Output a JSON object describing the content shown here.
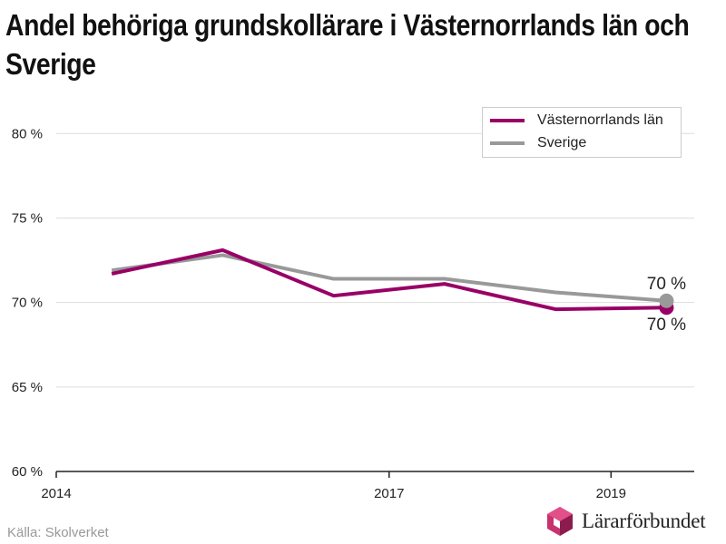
{
  "title": "Andel behöriga grundskollärare i Västernorrlands län och Sverige",
  "source": "Källa: Skolverket",
  "logo_text": "Lärarförbundet",
  "colors": {
    "series1": "#990066",
    "series2": "#999999",
    "grid": "#dddddd",
    "axis": "#222222"
  },
  "chart_data": {
    "type": "line",
    "xlim": [
      2014,
      2019.75
    ],
    "ylim": [
      60,
      82
    ],
    "yticks": [
      60,
      65,
      70,
      75,
      80
    ],
    "ytick_labels": [
      "60 %",
      "65 %",
      "70 %",
      "75 %",
      "80 %"
    ],
    "xticks": [
      2014,
      2017,
      2019
    ],
    "xtick_labels": [
      "2014",
      "2017",
      "2019"
    ],
    "grid": true,
    "legend_position": "top-right",
    "series": [
      {
        "name": "Västernorrlands län",
        "color": "#990066",
        "x": [
          2014.5,
          2015.5,
          2016.5,
          2017.5,
          2018.5,
          2019.5
        ],
        "y": [
          71.7,
          73.1,
          70.4,
          71.1,
          69.6,
          69.7
        ],
        "end_label": "70 %"
      },
      {
        "name": "Sverige",
        "color": "#999999",
        "x": [
          2014.5,
          2015.5,
          2016.5,
          2017.5,
          2018.5,
          2019.5
        ],
        "y": [
          71.9,
          72.8,
          71.4,
          71.4,
          70.6,
          70.1
        ],
        "end_label": "70 %"
      }
    ]
  }
}
